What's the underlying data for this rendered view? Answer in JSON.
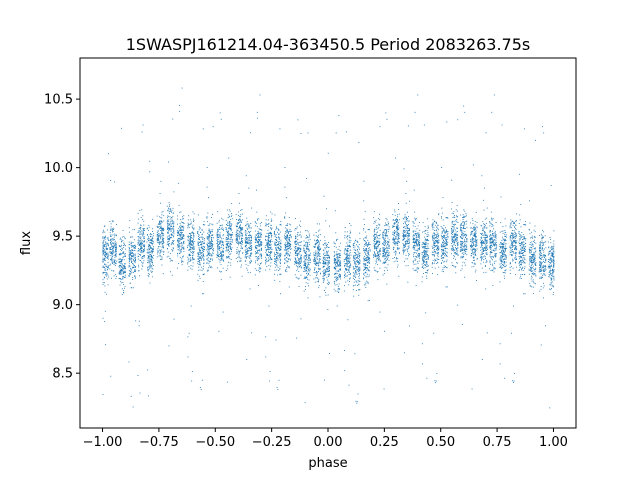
{
  "chart_data": {
    "type": "scatter",
    "title": "1SWASPJ161214.04-363450.5 Period 2083263.75s",
    "xlabel": "phase",
    "ylabel": "flux",
    "xlim": [
      -1.1,
      1.1
    ],
    "ylim": [
      8.1,
      10.8
    ],
    "x_ticks": [
      -1.0,
      -0.75,
      -0.5,
      -0.25,
      0.0,
      0.25,
      0.5,
      0.75,
      1.0
    ],
    "x_tick_labels": [
      "−1.00",
      "−0.75",
      "−0.50",
      "−0.25",
      "0.00",
      "0.25",
      "0.50",
      "0.75",
      "1.00"
    ],
    "y_ticks": [
      8.5,
      9.0,
      9.5,
      10.0,
      10.5
    ],
    "y_tick_labels": [
      "8.5",
      "9.0",
      "9.5",
      "10.0",
      "10.5"
    ],
    "grid": false,
    "marker_color": "#1f77b4",
    "series": [
      {
        "clusters": [
          {
            "x": -0.99,
            "y": 9.35,
            "spread_y": 0.3
          },
          {
            "x": -0.955,
            "y": 9.4,
            "spread_y": 0.28
          },
          {
            "x": -0.915,
            "y": 9.3,
            "spread_y": 0.3
          },
          {
            "x": -0.87,
            "y": 9.35,
            "spread_y": 0.3
          },
          {
            "x": -0.83,
            "y": 9.45,
            "spread_y": 0.28
          },
          {
            "x": -0.79,
            "y": 9.4,
            "spread_y": 0.28
          },
          {
            "x": -0.745,
            "y": 9.5,
            "spread_y": 0.28
          },
          {
            "x": -0.7,
            "y": 9.55,
            "spread_y": 0.3
          },
          {
            "x": -0.655,
            "y": 9.5,
            "spread_y": 0.28
          },
          {
            "x": -0.61,
            "y": 9.45,
            "spread_y": 0.28
          },
          {
            "x": -0.565,
            "y": 9.4,
            "spread_y": 0.28
          },
          {
            "x": -0.525,
            "y": 9.45,
            "spread_y": 0.28
          },
          {
            "x": -0.48,
            "y": 9.45,
            "spread_y": 0.28
          },
          {
            "x": -0.44,
            "y": 9.5,
            "spread_y": 0.3
          },
          {
            "x": -0.395,
            "y": 9.5,
            "spread_y": 0.3
          },
          {
            "x": -0.355,
            "y": 9.45,
            "spread_y": 0.28
          },
          {
            "x": -0.31,
            "y": 9.45,
            "spread_y": 0.28
          },
          {
            "x": -0.265,
            "y": 9.45,
            "spread_y": 0.28
          },
          {
            "x": -0.225,
            "y": 9.4,
            "spread_y": 0.28
          },
          {
            "x": -0.18,
            "y": 9.45,
            "spread_y": 0.28
          },
          {
            "x": -0.135,
            "y": 9.4,
            "spread_y": 0.28
          },
          {
            "x": -0.095,
            "y": 9.35,
            "spread_y": 0.3
          },
          {
            "x": -0.05,
            "y": 9.35,
            "spread_y": 0.3
          },
          {
            "x": -0.01,
            "y": 9.3,
            "spread_y": 0.3
          },
          {
            "x": 0.04,
            "y": 9.3,
            "spread_y": 0.28
          },
          {
            "x": 0.085,
            "y": 9.35,
            "spread_y": 0.3
          },
          {
            "x": 0.125,
            "y": 9.3,
            "spread_y": 0.3
          },
          {
            "x": 0.17,
            "y": 9.35,
            "spread_y": 0.3
          },
          {
            "x": 0.215,
            "y": 9.45,
            "spread_y": 0.28
          },
          {
            "x": 0.255,
            "y": 9.45,
            "spread_y": 0.28
          },
          {
            "x": 0.3,
            "y": 9.5,
            "spread_y": 0.3
          },
          {
            "x": 0.345,
            "y": 9.5,
            "spread_y": 0.28
          },
          {
            "x": 0.39,
            "y": 9.45,
            "spread_y": 0.28
          },
          {
            "x": 0.43,
            "y": 9.4,
            "spread_y": 0.28
          },
          {
            "x": 0.475,
            "y": 9.45,
            "spread_y": 0.28
          },
          {
            "x": 0.515,
            "y": 9.45,
            "spread_y": 0.28
          },
          {
            "x": 0.56,
            "y": 9.5,
            "spread_y": 0.3
          },
          {
            "x": 0.6,
            "y": 9.5,
            "spread_y": 0.3
          },
          {
            "x": 0.645,
            "y": 9.45,
            "spread_y": 0.28
          },
          {
            "x": 0.69,
            "y": 9.45,
            "spread_y": 0.28
          },
          {
            "x": 0.73,
            "y": 9.45,
            "spread_y": 0.28
          },
          {
            "x": 0.775,
            "y": 9.4,
            "spread_y": 0.28
          },
          {
            "x": 0.82,
            "y": 9.45,
            "spread_y": 0.28
          },
          {
            "x": 0.86,
            "y": 9.4,
            "spread_y": 0.28
          },
          {
            "x": 0.905,
            "y": 9.35,
            "spread_y": 0.3
          },
          {
            "x": 0.95,
            "y": 9.35,
            "spread_y": 0.3
          },
          {
            "x": 0.99,
            "y": 9.3,
            "spread_y": 0.3
          }
        ],
        "y_min_observed": 8.25,
        "y_max_observed": 10.68
      }
    ]
  }
}
